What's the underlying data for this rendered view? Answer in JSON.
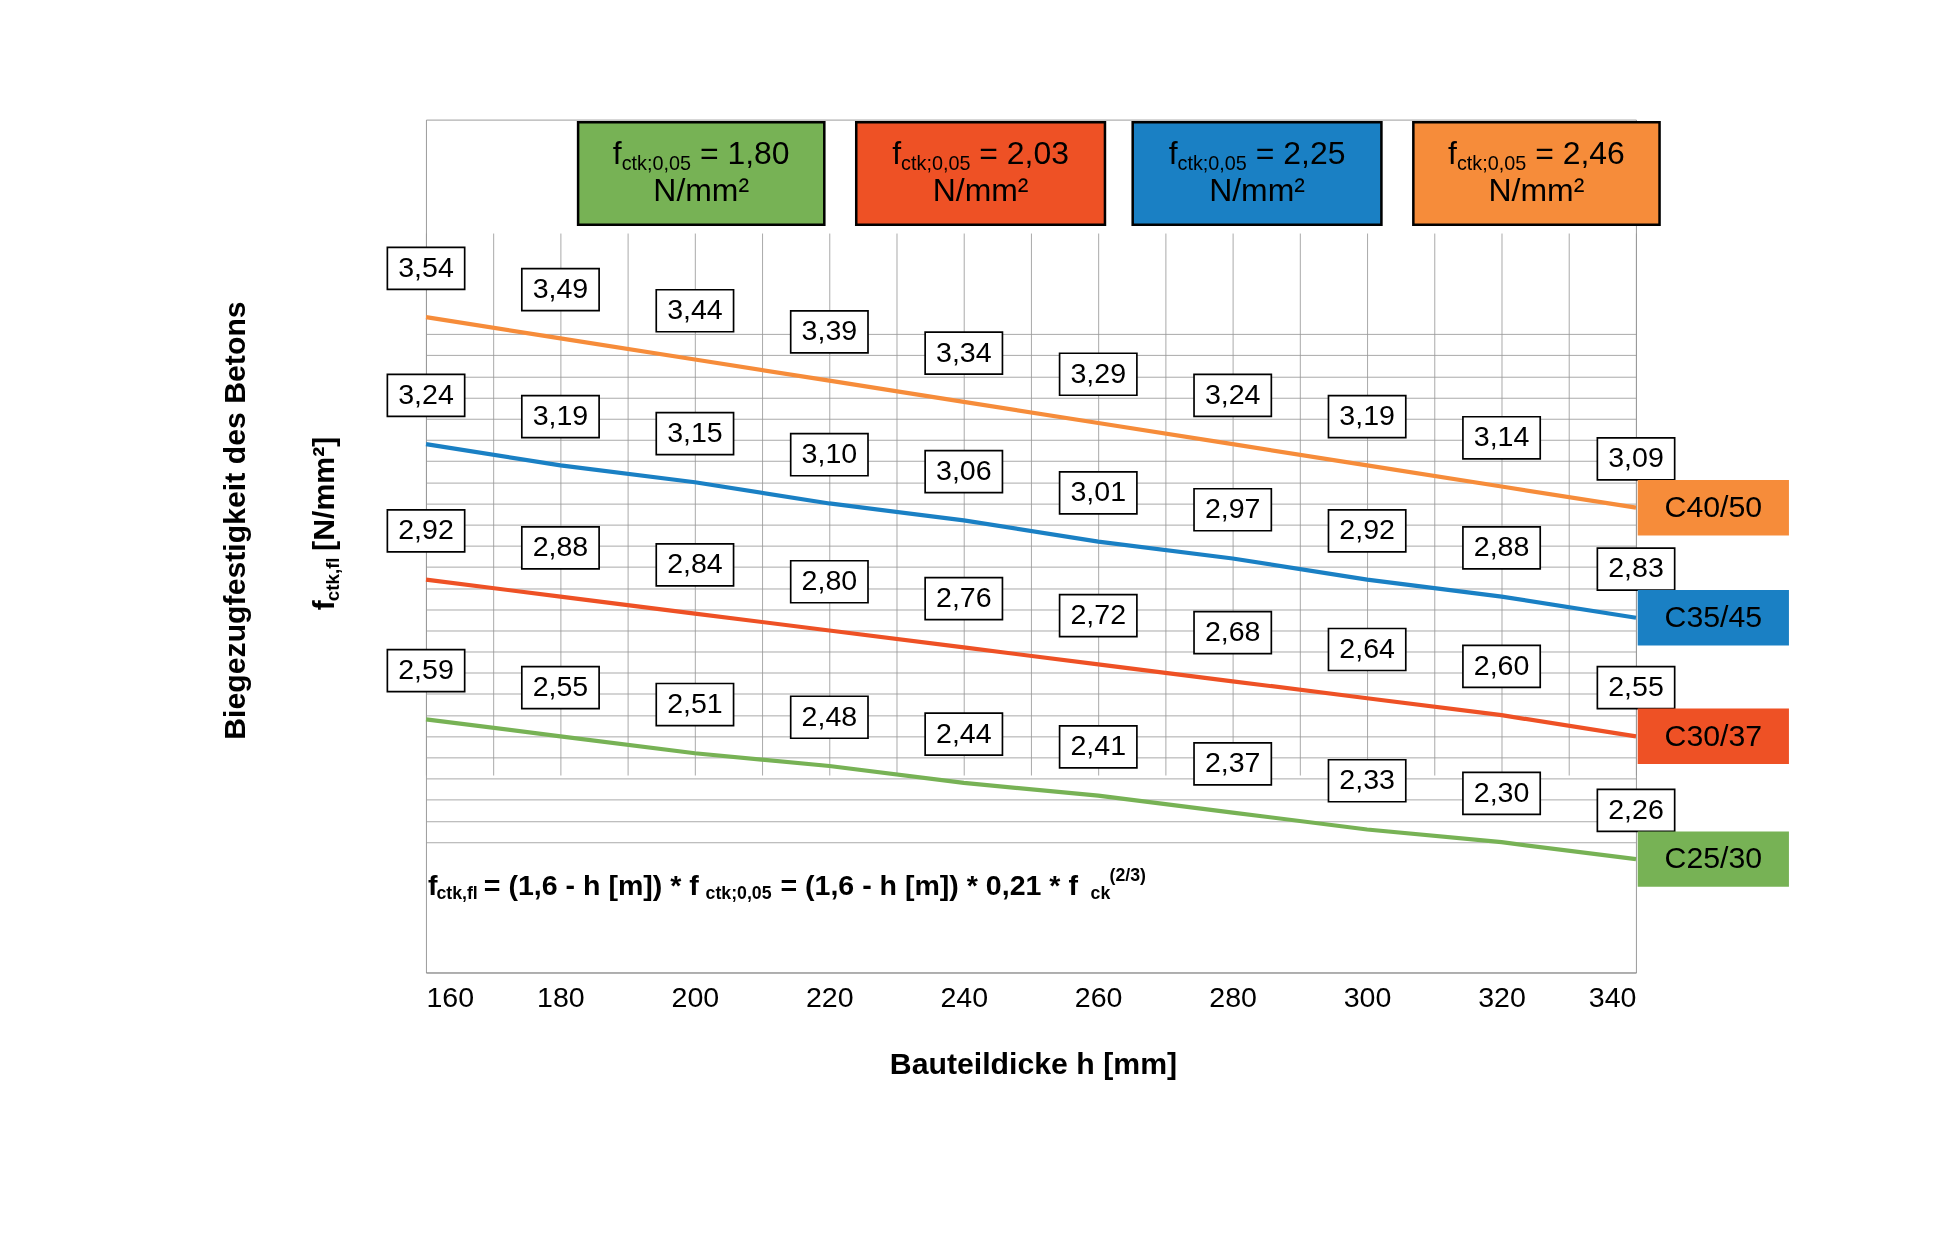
{
  "chart_data": {
    "type": "line",
    "xlabel": "Bauteildicke h [mm]",
    "ylabel": "Biegezugfestigkeit des Betons\nf$_{ctk,fl}$ [N/mm²]",
    "x": [
      160,
      180,
      200,
      220,
      240,
      260,
      280,
      300,
      320,
      340
    ],
    "series": [
      {
        "name": "C25/30",
        "color": "#77b255",
        "values": [
          2.59,
          2.55,
          2.51,
          2.48,
          2.44,
          2.41,
          2.37,
          2.33,
          2.3,
          2.26
        ],
        "value_labels": [
          "2,59",
          "2,55",
          "2,51",
          "2,48",
          "2,44",
          "2,41",
          "2,37",
          "2,33",
          "2,30",
          "2,26"
        ]
      },
      {
        "name": "C30/37",
        "color": "#ee5125",
        "values": [
          2.92,
          2.88,
          2.84,
          2.8,
          2.76,
          2.72,
          2.68,
          2.64,
          2.6,
          2.55
        ],
        "value_labels": [
          "2,92",
          "2,88",
          "2,84",
          "2,80",
          "2,76",
          "2,72",
          "2,68",
          "2,64",
          "2,60",
          "2,55"
        ]
      },
      {
        "name": "C35/45",
        "color": "#1a80c4",
        "values": [
          3.24,
          3.19,
          3.15,
          3.1,
          3.06,
          3.01,
          2.97,
          2.92,
          2.88,
          2.83
        ],
        "value_labels": [
          "3,24",
          "3,19",
          "3,15",
          "3,10",
          "3,06",
          "3,01",
          "2,97",
          "2,92",
          "2,88",
          "2,83"
        ]
      },
      {
        "name": "C40/50",
        "color": "#f68c3a",
        "values": [
          3.54,
          3.49,
          3.44,
          3.39,
          3.34,
          3.29,
          3.24,
          3.19,
          3.14,
          3.09
        ],
        "value_labels": [
          "3,54",
          "3,49",
          "3,44",
          "3,39",
          "3,34",
          "3,29",
          "3,24",
          "3,19",
          "3,14",
          "3,09"
        ]
      }
    ],
    "annotations": [
      "f$_{ctk;0,05}$ = 1,80\nN/mm²",
      "f$_{ctk;0,05}$ = 2,03\nN/mm²",
      "f$_{ctk;0,05}$ = 2,25\nN/mm²",
      "f$_{ctk;0,05}$ = 2,46\nN/mm²",
      "f$_{ctk,fl}$ = (1,6 - h [m]) * f$_{ctk;0,05}$ = (1,6 - h [m]) * 0,21 * f$_{ck}$$^{(2/3)}$"
    ],
    "xlim": [
      160,
      340
    ],
    "xticks": [
      160,
      {
        "value": 170,
        "label": null
      },
      180,
      {
        "value": 190,
        "label": null
      },
      200,
      {
        "value": 210,
        "label": null
      },
      220,
      {
        "value": 230,
        "label": null
      },
      240,
      {
        "value": 250,
        "label": null
      },
      260,
      {
        "value": 270,
        "label": null
      },
      280,
      {
        "value": 290,
        "label": null
      },
      300,
      {
        "value": 310,
        "label": null
      },
      320,
      {
        "value": 330,
        "label": null
      },
      340
    ],
    "tick_labels": "x",
    "grid": true,
    "legend": "right",
    "marker": "none",
    "line_style": "solid"
  }
}
